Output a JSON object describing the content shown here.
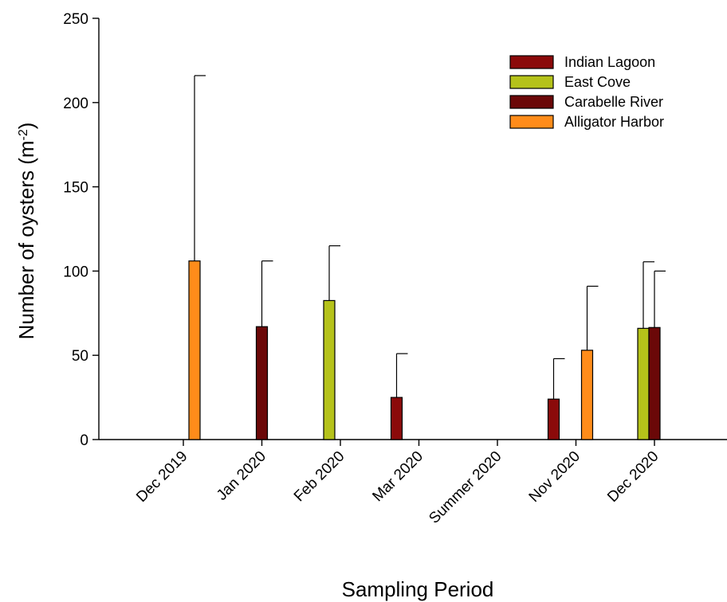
{
  "chart_data": {
    "type": "bar",
    "xlabel": "Sampling Period",
    "ylabel": "Number of oysters (m",
    "ylabel_sup": "-2",
    "ylabel_end": ")",
    "ylim": [
      0,
      250
    ],
    "yticks": [
      0,
      50,
      100,
      150,
      200,
      250
    ],
    "ytick_labels": [
      "0",
      "50",
      "100",
      "150",
      "200",
      "250"
    ],
    "categories": [
      "Dec 2019",
      "Jan 2020",
      "Feb 2020",
      "Mar 2020",
      "Summer 2020",
      "Nov 2020",
      "Dec 2020"
    ],
    "legend_position": "top-right",
    "series": [
      {
        "name": "Indian Lagoon",
        "color": "#8b0a0a",
        "values": [
          null,
          null,
          null,
          25,
          null,
          24,
          null
        ],
        "error_upper": [
          null,
          null,
          null,
          51,
          null,
          48,
          null
        ]
      },
      {
        "name": "East Cove",
        "color": "#b5c21a",
        "values": [
          null,
          null,
          82.5,
          null,
          null,
          null,
          66
        ],
        "error_upper": [
          null,
          null,
          115,
          null,
          null,
          null,
          105.5
        ]
      },
      {
        "name": "Carabelle River",
        "color": "#6b0808",
        "values": [
          null,
          67,
          null,
          null,
          null,
          null,
          66.5
        ],
        "error_upper": [
          null,
          106,
          null,
          null,
          null,
          null,
          100
        ]
      },
      {
        "name": "Alligator Harbor",
        "color": "#ff8c1a",
        "values": [
          106,
          null,
          null,
          null,
          null,
          53,
          null
        ],
        "error_upper": [
          216,
          null,
          null,
          null,
          null,
          91,
          null
        ]
      }
    ]
  }
}
